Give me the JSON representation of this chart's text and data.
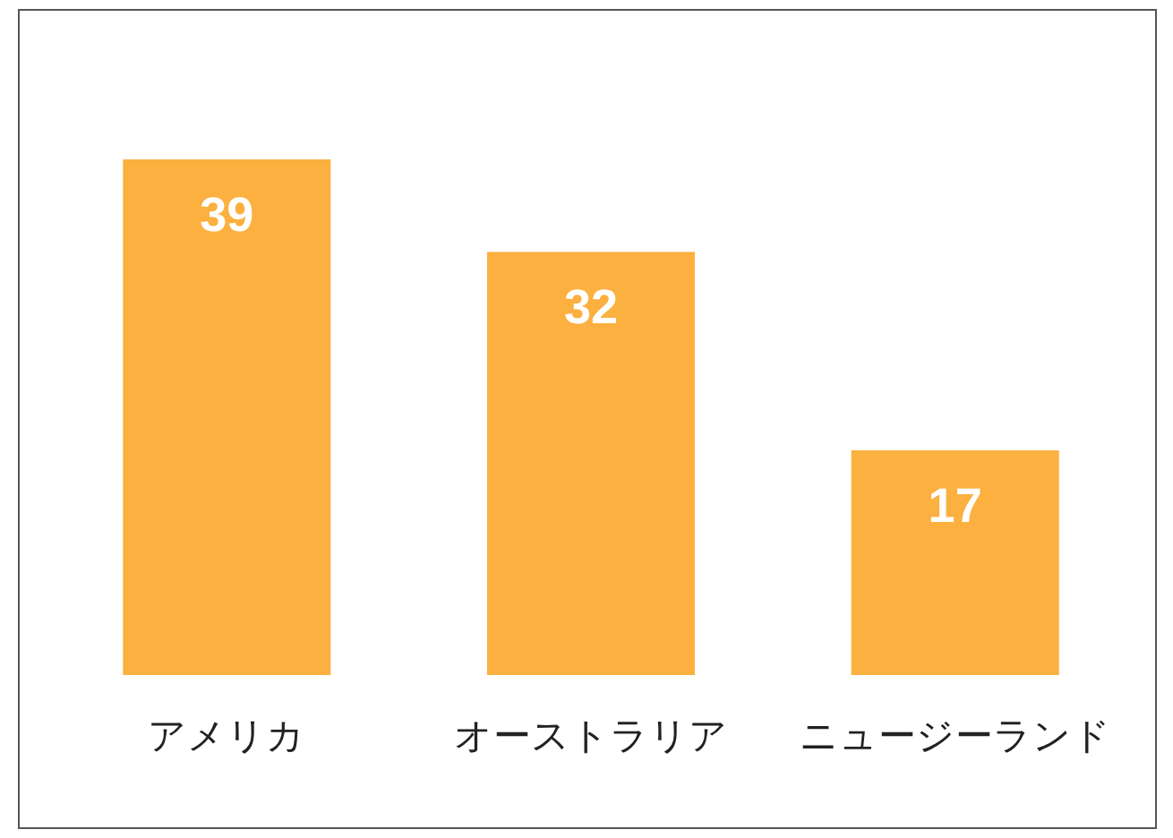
{
  "chart_data": {
    "type": "bar",
    "categories": [
      "アメリカ",
      "オーストラリア",
      "ニュージーランド"
    ],
    "values": [
      39,
      32,
      17
    ],
    "color": "#fbb040",
    "data_labels": true
  }
}
